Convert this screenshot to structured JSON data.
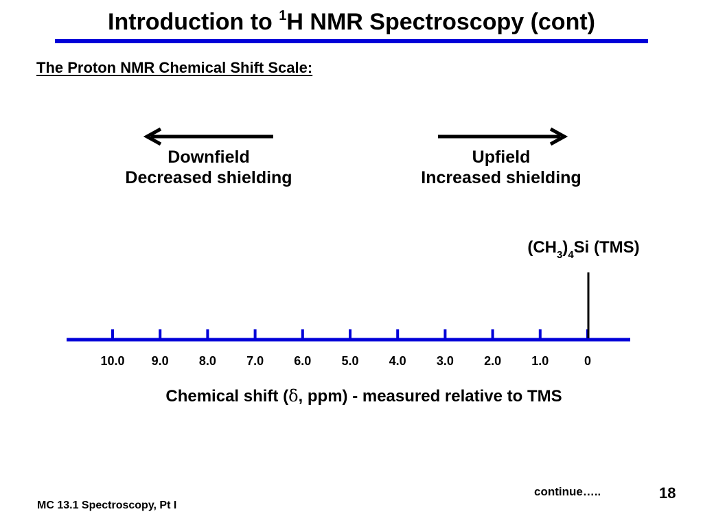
{
  "slide": {
    "title_prefix": "Introduction to ",
    "title_sup": "1",
    "title_suffix": "H NMR Spectroscopy (cont)",
    "subtitle": "The Proton NMR Chemical Shift Scale:",
    "downfield": {
      "line1": "Downfield",
      "line2": "Decreased shielding"
    },
    "upfield": {
      "line1": "Upfield",
      "line2": "Increased shielding"
    },
    "tms": {
      "part1": "(CH",
      "sub1": "3",
      "part2": ")",
      "sub2": "4",
      "part3": "Si (TMS)"
    },
    "axis_caption_pre": "Chemical shift (",
    "axis_caption_delta": "δ",
    "axis_caption_post": ", ppm) - measured relative to TMS",
    "continue": "continue…..",
    "page_number": "18",
    "footer": "MC 13.1 Spectroscopy, Pt I"
  },
  "scale": {
    "tick_labels": [
      "10.0",
      "9.0",
      "8.0",
      "7.0",
      "6.0",
      "5.0",
      "4.0",
      "3.0",
      "2.0",
      "1.0",
      "0"
    ],
    "values": [
      10,
      9,
      8,
      7,
      6,
      5,
      4,
      3,
      2,
      1,
      0
    ],
    "reference_value": 0,
    "axis_color": "#0000d8",
    "reference_line_color": "#000000"
  }
}
